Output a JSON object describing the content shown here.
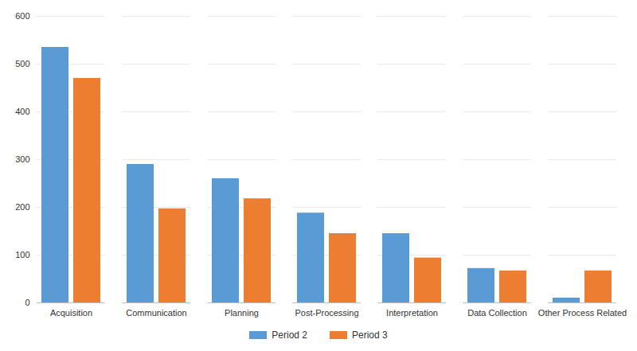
{
  "chart_data": {
    "type": "bar",
    "categories": [
      "Acquisition",
      "Communication",
      "Planning",
      "Post-Processing",
      "Interpretation",
      "Data Collection",
      "Other Process Related"
    ],
    "series": [
      {
        "name": "Period 2",
        "color": "#5b9bd5",
        "values": [
          535,
          290,
          260,
          188,
          145,
          72,
          10
        ]
      },
      {
        "name": "Period 3",
        "color": "#ed7d31",
        "values": [
          470,
          197,
          218,
          145,
          94,
          67,
          67
        ]
      }
    ],
    "ylim": [
      0,
      600
    ],
    "yticks": [
      0,
      100,
      200,
      300,
      400,
      500,
      600
    ],
    "grid": true,
    "legend": "bottom"
  }
}
